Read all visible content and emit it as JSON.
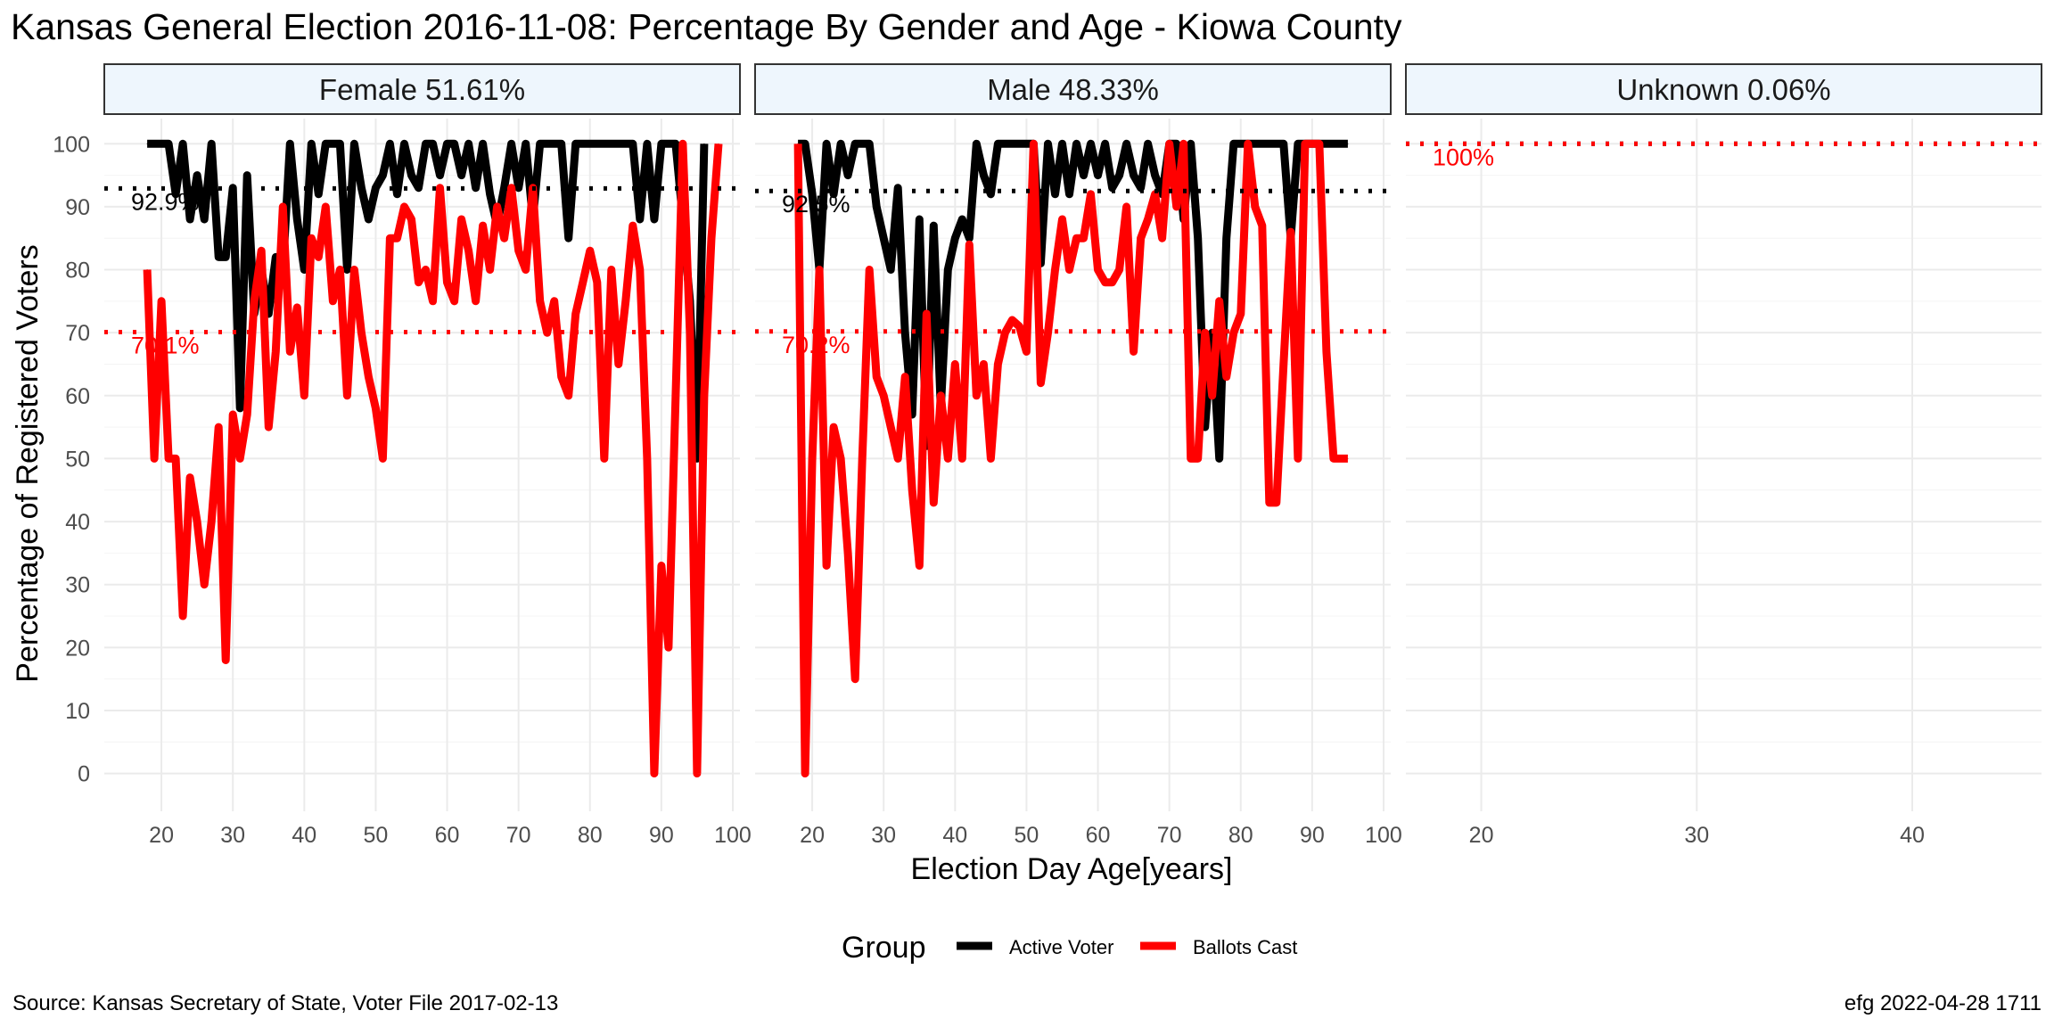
{
  "title": "Kansas General Election 2016-11-08:  Percentage By Gender and Age - Kiowa County",
  "source": "Source:  Kansas Secretary of State, Voter File  2017-02-13",
  "stamp": "efg 2022-04-28 1711",
  "xlabel": "Election Day Age[years]",
  "ylabel": "Percentage of Registered Voters",
  "legend": {
    "title": "Group",
    "items": [
      {
        "label": "Active Voter",
        "color": "#000000"
      },
      {
        "label": "Ballots Cast",
        "color": "#ff0000"
      }
    ]
  },
  "colors": {
    "active": "#000000",
    "ballots": "#ff0000",
    "strip_fill": "#eef6fd",
    "grid": "#ebebeb"
  },
  "chart_data": [
    {
      "type": "line",
      "panel": "Female 51.61%",
      "xlim": [
        12,
        101
      ],
      "ylim": [
        -6,
        104
      ],
      "x_ticks": [
        20,
        30,
        40,
        50,
        60,
        70,
        80,
        90,
        100
      ],
      "y_ticks": [
        0,
        10,
        20,
        30,
        40,
        50,
        60,
        70,
        80,
        90,
        100
      ],
      "reference_lines": [
        {
          "series": "Active Voter",
          "value": 92.9,
          "label": "92.9%"
        },
        {
          "series": "Ballots Cast",
          "value": 70.1,
          "label": "70.1%"
        }
      ],
      "series": [
        {
          "name": "Active Voter",
          "x": [
            18,
            19,
            20,
            21,
            22,
            23,
            24,
            25,
            26,
            27,
            28,
            29,
            30,
            31,
            32,
            33,
            34,
            35,
            36,
            37,
            38,
            39,
            40,
            41,
            42,
            43,
            44,
            45,
            46,
            47,
            48,
            49,
            50,
            51,
            52,
            53,
            54,
            55,
            56,
            57,
            58,
            59,
            60,
            61,
            62,
            63,
            64,
            65,
            66,
            67,
            68,
            69,
            70,
            71,
            72,
            73,
            74,
            75,
            76,
            77,
            78,
            79,
            80,
            81,
            82,
            83,
            84,
            85,
            86,
            87,
            88,
            89,
            90,
            91,
            92,
            93,
            94,
            95,
            96
          ],
          "values": [
            100,
            100,
            100,
            100,
            92,
            100,
            88,
            95,
            88,
            100,
            82,
            82,
            93,
            58,
            95,
            73,
            80,
            73,
            82,
            80,
            100,
            88,
            80,
            100,
            92,
            100,
            100,
            100,
            80,
            100,
            93,
            88,
            93,
            95,
            100,
            92,
            100,
            95,
            93,
            100,
            100,
            95,
            100,
            100,
            95,
            100,
            93,
            100,
            92,
            87,
            93,
            100,
            93,
            100,
            88,
            100,
            100,
            100,
            100,
            85,
            100,
            100,
            100,
            100,
            100,
            100,
            100,
            100,
            100,
            88,
            100,
            88,
            100,
            100,
            100,
            88,
            75,
            50,
            100
          ]
        },
        {
          "name": "Ballots Cast",
          "x": [
            18,
            19,
            20,
            21,
            22,
            23,
            24,
            25,
            26,
            27,
            28,
            29,
            30,
            31,
            32,
            33,
            34,
            35,
            36,
            37,
            38,
            39,
            40,
            41,
            42,
            43,
            44,
            45,
            46,
            47,
            48,
            49,
            50,
            51,
            52,
            53,
            54,
            55,
            56,
            57,
            58,
            59,
            60,
            61,
            62,
            63,
            64,
            65,
            66,
            67,
            68,
            69,
            70,
            71,
            72,
            73,
            74,
            75,
            76,
            77,
            78,
            79,
            80,
            81,
            82,
            83,
            84,
            85,
            86,
            87,
            88,
            89,
            90,
            91,
            92,
            93,
            94,
            95,
            96,
            97,
            98
          ],
          "values": [
            80,
            50,
            75,
            50,
            50,
            25,
            47,
            40,
            30,
            40,
            55,
            18,
            57,
            50,
            57,
            75,
            83,
            55,
            67,
            90,
            67,
            74,
            60,
            85,
            82,
            90,
            75,
            80,
            60,
            80,
            70,
            63,
            58,
            50,
            85,
            85,
            90,
            88,
            78,
            80,
            75,
            93,
            78,
            75,
            88,
            83,
            75,
            87,
            80,
            90,
            85,
            93,
            83,
            80,
            93,
            75,
            70,
            75,
            63,
            60,
            73,
            78,
            83,
            78,
            50,
            80,
            65,
            75,
            87,
            80,
            50,
            0,
            33,
            20,
            60,
            100,
            70,
            0,
            60,
            85,
            100
          ]
        }
      ]
    },
    {
      "type": "line",
      "panel": "Male 48.33%",
      "xlim": [
        12,
        101
      ],
      "ylim": [
        -6,
        104
      ],
      "x_ticks": [
        20,
        30,
        40,
        50,
        60,
        70,
        80,
        90,
        100
      ],
      "y_ticks": [
        0,
        10,
        20,
        30,
        40,
        50,
        60,
        70,
        80,
        90,
        100
      ],
      "reference_lines": [
        {
          "series": "Active Voter",
          "value": 92.5,
          "label": "92.5%"
        },
        {
          "series": "Ballots Cast",
          "value": 70.2,
          "label": "70.2%"
        }
      ],
      "series": [
        {
          "name": "Active Voter",
          "x": [
            18,
            19,
            20,
            21,
            22,
            23,
            24,
            25,
            26,
            27,
            28,
            29,
            30,
            31,
            32,
            33,
            34,
            35,
            36,
            37,
            38,
            39,
            40,
            41,
            42,
            43,
            44,
            45,
            46,
            47,
            48,
            49,
            50,
            51,
            52,
            53,
            54,
            55,
            56,
            57,
            58,
            59,
            60,
            61,
            62,
            63,
            64,
            65,
            66,
            67,
            68,
            69,
            70,
            71,
            72,
            73,
            74,
            75,
            76,
            77,
            78,
            79,
            80,
            81,
            82,
            83,
            84,
            85,
            86,
            87,
            88,
            89,
            90,
            91,
            92,
            93,
            94,
            95
          ],
          "values": [
            100,
            100,
            92,
            80,
            100,
            92,
            100,
            95,
            100,
            100,
            100,
            90,
            85,
            80,
            93,
            70,
            57,
            88,
            52,
            87,
            58,
            80,
            85,
            88,
            85,
            100,
            95,
            92,
            100,
            100,
            100,
            100,
            100,
            100,
            81,
            100,
            92,
            100,
            92,
            100,
            95,
            100,
            95,
            100,
            93,
            95,
            100,
            95,
            93,
            100,
            95,
            92,
            100,
            100,
            88,
            100,
            85,
            55,
            70,
            50,
            85,
            100,
            100,
            100,
            100,
            100,
            100,
            100,
            100,
            85,
            100,
            100,
            100,
            100,
            100,
            100,
            100,
            100
          ]
        },
        {
          "name": "Ballots Cast",
          "x": [
            18,
            19,
            20,
            21,
            22,
            23,
            24,
            25,
            26,
            27,
            28,
            29,
            30,
            31,
            32,
            33,
            34,
            35,
            36,
            37,
            38,
            39,
            40,
            41,
            42,
            43,
            44,
            45,
            46,
            47,
            48,
            49,
            50,
            51,
            52,
            53,
            54,
            55,
            56,
            57,
            58,
            59,
            60,
            61,
            62,
            63,
            64,
            65,
            66,
            67,
            68,
            69,
            70,
            71,
            72,
            73,
            74,
            75,
            76,
            77,
            78,
            79,
            80,
            81,
            82,
            83,
            84,
            85,
            86,
            87,
            88,
            89,
            90,
            91,
            92,
            93,
            94,
            95
          ],
          "values": [
            100,
            0,
            50,
            80,
            33,
            55,
            50,
            35,
            15,
            50,
            80,
            63,
            60,
            55,
            50,
            63,
            45,
            33,
            73,
            43,
            60,
            50,
            65,
            50,
            84,
            60,
            65,
            50,
            65,
            70,
            72,
            71,
            67,
            100,
            62,
            70,
            80,
            88,
            80,
            85,
            85,
            92,
            80,
            78,
            78,
            80,
            90,
            67,
            85,
            88,
            92,
            85,
            100,
            90,
            100,
            50,
            50,
            70,
            60,
            75,
            63,
            70,
            73,
            100,
            90,
            87,
            43,
            43,
            65,
            86,
            50,
            100,
            100,
            100,
            67,
            50,
            50,
            50
          ]
        }
      ]
    },
    {
      "type": "line",
      "panel": "Unknown 0.06%",
      "xlim": [
        16.5,
        46
      ],
      "ylim": [
        -6,
        104
      ],
      "x_ticks": [
        20,
        30,
        40
      ],
      "y_ticks": [
        0,
        10,
        20,
        30,
        40,
        50,
        60,
        70,
        80,
        90,
        100
      ],
      "reference_lines": [
        {
          "series": "Active Voter",
          "value": 100,
          "label": ""
        },
        {
          "series": "Ballots Cast",
          "value": 100,
          "label": "100%"
        }
      ],
      "series": []
    }
  ]
}
